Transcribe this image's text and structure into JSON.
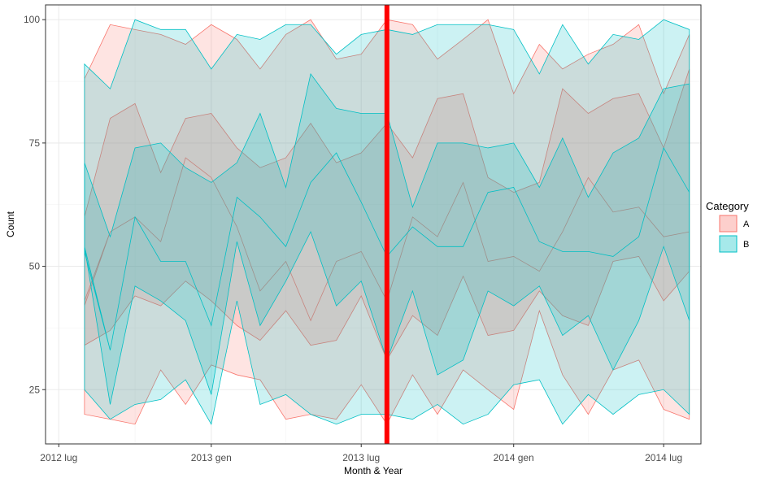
{
  "chart_data": {
    "type": "area",
    "title": "",
    "xlabel": "Month & Year",
    "ylabel": "Count",
    "x_tick_labels": [
      "2012 lug",
      "2013 gen",
      "2013 lug",
      "2014 gen",
      "2014 lug"
    ],
    "x_tick_dates": [
      "2012-07-01",
      "2013-01-01",
      "2013-07-01",
      "2014-01-01",
      "2014-07-01"
    ],
    "y_ticks": [
      25,
      50,
      75,
      100
    ],
    "xlim": [
      "2012-06-15",
      "2014-08-15"
    ],
    "ylim": [
      14,
      103
    ],
    "grid": true,
    "legend": {
      "title": "Category",
      "position": "right"
    },
    "reference_line": {
      "x": "2013-08-01",
      "color": "#ff0000"
    },
    "x": [
      "2012-08-01",
      "2012-09-01",
      "2012-10-01",
      "2012-11-01",
      "2012-12-01",
      "2013-01-01",
      "2013-02-01",
      "2013-03-01",
      "2013-04-01",
      "2013-05-01",
      "2013-06-01",
      "2013-07-01",
      "2013-08-01",
      "2013-09-01",
      "2013-10-01",
      "2013-11-01",
      "2013-12-01",
      "2014-01-01",
      "2014-02-01",
      "2014-03-01",
      "2014-04-01",
      "2014-05-01",
      "2014-06-01",
      "2014-07-01",
      "2014-08-01"
    ],
    "series": [
      {
        "name": "A",
        "color": "#f8766d",
        "bands": [
          {
            "upper": [
              88,
              99,
              98,
              97,
              95,
              99,
              96,
              90,
              97,
              100,
              92,
              93,
              100,
              99,
              92,
              96,
              100,
              85,
              95,
              90,
              93,
              95,
              99,
              85,
              97
            ],
            "lower": [
              20,
              19,
              18,
              29,
              22,
              30,
              28,
              27,
              19,
              20,
              19,
              26,
              18,
              28,
              20,
              29,
              25,
              21,
              41,
              28,
              20,
              29,
              31,
              21,
              19
            ]
          },
          {
            "upper": [
              60,
              80,
              83,
              69,
              80,
              81,
              74,
              70,
              72,
              79,
              71,
              73,
              79,
              72,
              84,
              85,
              68,
              65,
              67,
              86,
              81,
              84,
              85,
              74,
              90
            ],
            "lower": [
              34,
              37,
              44,
              42,
              47,
              43,
              38,
              35,
              41,
              34,
              35,
              44,
              31,
              40,
              36,
              48,
              36,
              37,
              45,
              40,
              38,
              51,
              52,
              43,
              49
            ]
          },
          {
            "upper": [
              43,
              57,
              60,
              55,
              72,
              68,
              58,
              45,
              51,
              39,
              51,
              53,
              43,
              60,
              56,
              67,
              51,
              52,
              49,
              57,
              68,
              61,
              62,
              56,
              57
            ],
            "lower": [
              42,
              57,
              60,
              55,
              72,
              68,
              58,
              45,
              51,
              39,
              51,
              53,
              43,
              60,
              56,
              67,
              51,
              52,
              49,
              57,
              68,
              61,
              62,
              56,
              57
            ]
          }
        ]
      },
      {
        "name": "B",
        "color": "#00bfc4",
        "bands": [
          {
            "upper": [
              91,
              86,
              100,
              98,
              98,
              90,
              97,
              96,
              99,
              99,
              93,
              97,
              98,
              97,
              99,
              99,
              99,
              98,
              89,
              99,
              91,
              97,
              96,
              100,
              98
            ],
            "lower": [
              25,
              19,
              22,
              23,
              27,
              18,
              43,
              22,
              24,
              20,
              18,
              20,
              20,
              19,
              22,
              18,
              20,
              26,
              27,
              18,
              24,
              20,
              24,
              25,
              20
            ]
          },
          {
            "upper": [
              71,
              56,
              74,
              75,
              70,
              67,
              71,
              81,
              66,
              89,
              82,
              81,
              81,
              62,
              75,
              75,
              74,
              75,
              66,
              76,
              64,
              73,
              76,
              86,
              87
            ],
            "lower": [
              54,
              22,
              46,
              43,
              39,
              24,
              55,
              38,
              47,
              57,
              42,
              47,
              31,
              45,
              28,
              31,
              45,
              42,
              46,
              36,
              40,
              29,
              39,
              54,
              39
            ]
          },
          {
            "upper": [
              54,
              33,
              60,
              51,
              51,
              38,
              64,
              60,
              54,
              67,
              73,
              63,
              52,
              58,
              54,
              54,
              65,
              66,
              55,
              53,
              53,
              52,
              56,
              74,
              65
            ],
            "lower": [
              53,
              33,
              60,
              51,
              51,
              38,
              64,
              60,
              54,
              67,
              73,
              63,
              52,
              58,
              54,
              54,
              65,
              66,
              55,
              53,
              53,
              52,
              56,
              74,
              65
            ]
          }
        ]
      }
    ]
  }
}
